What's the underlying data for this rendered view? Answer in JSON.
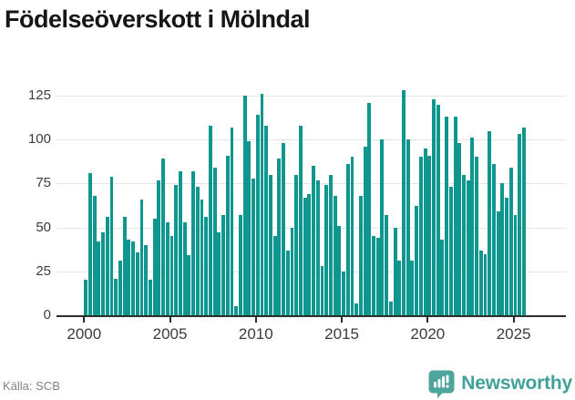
{
  "title": "Födelseöverskott i Mölndal",
  "footer": {
    "source_label": "Källa: SCB",
    "brand": "Newsworthy"
  },
  "colors": {
    "bar": "#0f968e",
    "brand_teal": "#42a09a",
    "grid": "#e4e4e4",
    "axis": "#2d2d2d",
    "title_text": "#161616",
    "tick_text": "#3c3c3c",
    "source_text": "#838383"
  },
  "chart_data": {
    "type": "bar",
    "title": "Födelseöverskott i Mölndal",
    "x_unit": "quarter",
    "start_period": "2000 Q1",
    "end_period": "2025 Q3",
    "x_tick_labels": [
      "2000",
      "2005",
      "2010",
      "2015",
      "2020",
      "2025"
    ],
    "y_tick_labels": [
      "0",
      "25",
      "50",
      "75",
      "100",
      "125"
    ],
    "y_tick_values": [
      0,
      25,
      50,
      75,
      100,
      125
    ],
    "ylim": [
      0,
      130
    ],
    "grid": true,
    "legend": false,
    "values": [
      20,
      81,
      68,
      42,
      47,
      56,
      79,
      21,
      31,
      56,
      43,
      42,
      36,
      66,
      40,
      20,
      55,
      77,
      89,
      53,
      45,
      74,
      82,
      53,
      34,
      82,
      73,
      66,
      56,
      108,
      84,
      47,
      57,
      91,
      107,
      5,
      57,
      125,
      99,
      78,
      114,
      126,
      108,
      80,
      45,
      89,
      98,
      37,
      50,
      80,
      108,
      67,
      69,
      85,
      77,
      28,
      74,
      80,
      68,
      51,
      25,
      86,
      90,
      7,
      68,
      96,
      121,
      45,
      44,
      100,
      57,
      8,
      50,
      31,
      128,
      100,
      31,
      62,
      90,
      95,
      91,
      123,
      120,
      43,
      113,
      73,
      113,
      98,
      80,
      77,
      101,
      90,
      37,
      35,
      105,
      86,
      59,
      75,
      67,
      84,
      57,
      103,
      107
    ]
  }
}
